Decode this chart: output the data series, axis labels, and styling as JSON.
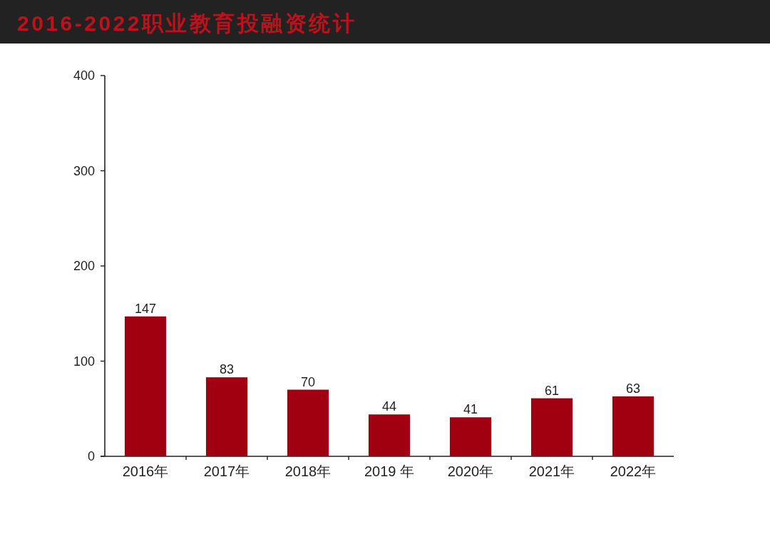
{
  "chart_data": {
    "type": "bar",
    "title": "2016-2022职业教育投融资统计",
    "categories": [
      "2016年",
      "2017年",
      "2018年",
      "2019 年",
      "2020年",
      "2021年",
      "2022年"
    ],
    "values": [
      147,
      83,
      70,
      44,
      41,
      61,
      63
    ],
    "color": "#a0000f",
    "ylim": [
      0,
      400
    ],
    "yticks": [
      0,
      100,
      200,
      300,
      400
    ],
    "data_labels": true
  }
}
